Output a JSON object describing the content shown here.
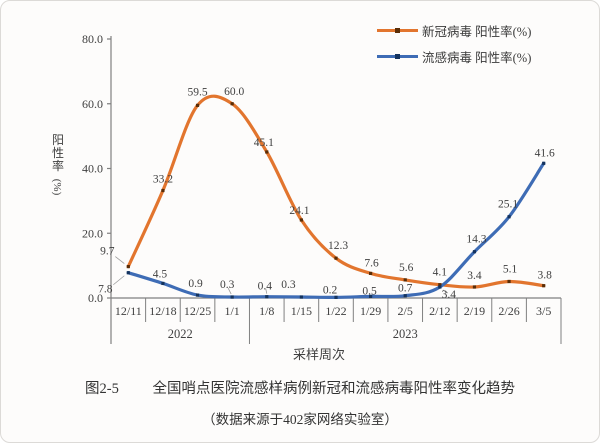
{
  "page": {
    "background": "#fdfcfb",
    "border_color": "#dcdad7"
  },
  "legend": {
    "position": "top-right"
  },
  "captions": {
    "figure_no": "图2-5",
    "title": "全国哨点医院流感样病例新冠和流感病毒阳性率变化趋势",
    "source": "（数据来源于402家网络实验室）"
  },
  "chart_data": {
    "type": "line",
    "smooth": true,
    "grid": false,
    "title": "全国哨点医院流感样病例新冠和流感病毒阳性率变化趋势",
    "categories": [
      "12/11",
      "12/18",
      "12/25",
      "1/1",
      "1/8",
      "1/15",
      "1/22",
      "1/29",
      "2/5",
      "2/12",
      "2/19",
      "2/26",
      "3/5"
    ],
    "year_groups": [
      {
        "label": "2022",
        "from": 0,
        "to": 3
      },
      {
        "label": "2023",
        "from": 4,
        "to": 12
      }
    ],
    "series": [
      {
        "name": "新冠病毒 阳性率(%)",
        "color": "#E2752E",
        "marker_color": "#5a2d07",
        "values": [
          9.7,
          33.2,
          59.5,
          60.0,
          45.1,
          24.1,
          12.3,
          7.6,
          5.6,
          4.1,
          3.4,
          5.1,
          3.8
        ]
      },
      {
        "name": "流感病毒 阳性率(%)",
        "color": "#3E6CB5",
        "marker_color": "#14335e",
        "values": [
          7.8,
          4.5,
          0.9,
          0.3,
          0.4,
          0.3,
          0.2,
          0.5,
          0.7,
          3.4,
          14.3,
          25.1,
          41.6
        ]
      }
    ],
    "ylim": [
      0,
      80
    ],
    "yticks": [
      "0.0",
      "20.0",
      "40.0",
      "60.0",
      "80.0"
    ],
    "ylabel": "阳性率",
    "ylabel_unit": "(%)",
    "xlabel": "采样周次",
    "axis_color": "#808080",
    "text_color": "#3f3f3f",
    "layout": {
      "label_offsets": [
        [
          [
            -21,
            -16
          ],
          [
            0,
            -12
          ],
          [
            0,
            -14
          ],
          [
            2,
            -13
          ],
          [
            -3,
            -10
          ],
          [
            -2,
            -10
          ],
          [
            2,
            -13
          ],
          [
            1,
            -11
          ],
          [
            1,
            -13
          ],
          [
            0,
            -13
          ],
          [
            0,
            -12
          ],
          [
            1,
            -13
          ],
          [
            1,
            -11
          ]
        ],
        [
          [
            -23,
            16
          ],
          [
            -3,
            -10
          ],
          [
            -2,
            -12
          ],
          [
            -5,
            -13
          ],
          [
            -2,
            -11
          ],
          [
            -13,
            -13
          ],
          [
            -6,
            -8
          ],
          [
            -1,
            -6
          ],
          [
            0,
            -8
          ],
          [
            9,
            7
          ],
          [
            2,
            -13
          ],
          [
            -1,
            -13
          ],
          [
            1,
            -11
          ]
        ]
      ],
      "leaders": [
        {
          "series": 0,
          "index": 0,
          "from": [
            -13,
            -10
          ],
          "to": [
            -4,
            -3
          ]
        },
        {
          "series": 1,
          "index": 0,
          "from": [
            -15,
            12
          ],
          "to": [
            -4,
            3
          ]
        },
        {
          "series": 1,
          "index": 3,
          "from": [
            -4,
            -9
          ],
          "to": [
            -1,
            -3
          ]
        },
        {
          "series": 1,
          "index": 4,
          "from": [
            -1,
            -8
          ],
          "to": [
            0,
            -3
          ]
        },
        {
          "series": 1,
          "index": 9,
          "from": [
            3,
            3
          ],
          "to": [
            8,
            6
          ]
        }
      ]
    }
  }
}
